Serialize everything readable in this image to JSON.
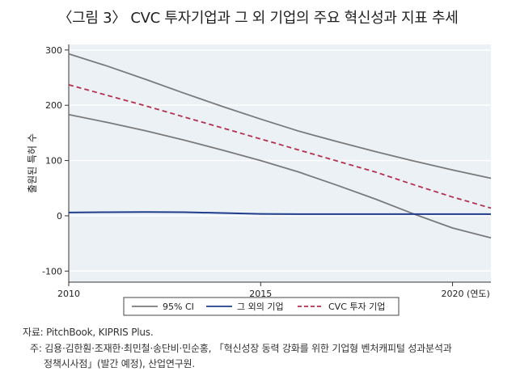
{
  "figure_title": "〈그림 3〉 CVC 투자기업과 그 외 기업의 주요 혁신성과 지표 추세",
  "source": {
    "line": "자료: PitchBook, KIPRIS Plus.",
    "note_line1": "주: 김용·김한훤·조재한·최민철·송단비·민순홍, 「혁신성장 동력 강화를 위한 기업형 벤처캐피털 성과분석과",
    "note_line2": "정책시사점」(발간 예정), 산업연구원."
  },
  "colors": {
    "plot_bg": "#ecf1f6",
    "grid": "#ffffff",
    "ci": "#7a7a7a",
    "other": "#1f3d8c",
    "cvc": "#b3304e"
  },
  "chart_data": {
    "type": "line",
    "title": "〈그림 3〉 CVC 투자기업과 그 외 기업의 주요 혁신성과 지표 추세",
    "ylabel": "출원된 특허 수",
    "xlabel": "",
    "xlim": [
      2010,
      2021
    ],
    "ylim": [
      -120,
      310
    ],
    "x_ticks": [
      {
        "value": 2010,
        "label": "2010"
      },
      {
        "value": 2015,
        "label": "2015"
      },
      {
        "value": 2020,
        "label": "2020 (연도)"
      }
    ],
    "y_ticks": [
      {
        "value": -100,
        "label": "-100"
      },
      {
        "value": 0,
        "label": "0"
      },
      {
        "value": 100,
        "label": "100"
      },
      {
        "value": 200,
        "label": "200"
      },
      {
        "value": 300,
        "label": "300"
      }
    ],
    "grid": true,
    "legend_position": "bottom",
    "series": [
      {
        "key": "ci_upper",
        "name": "95% CI",
        "style": "solid",
        "color": "#7a7a7a",
        "points": [
          [
            2010,
            293
          ],
          [
            2011,
            271
          ],
          [
            2012,
            247
          ],
          [
            2013,
            222
          ],
          [
            2014,
            198
          ],
          [
            2015,
            175
          ],
          [
            2016,
            153
          ],
          [
            2017,
            134
          ],
          [
            2018,
            116
          ],
          [
            2019,
            99
          ],
          [
            2020,
            83
          ],
          [
            2021,
            68
          ]
        ]
      },
      {
        "key": "ci_lower",
        "name": "95% CI",
        "style": "solid",
        "color": "#7a7a7a",
        "points": [
          [
            2010,
            183
          ],
          [
            2011,
            169
          ],
          [
            2012,
            154
          ],
          [
            2013,
            137
          ],
          [
            2014,
            119
          ],
          [
            2015,
            100
          ],
          [
            2016,
            79
          ],
          [
            2017,
            55
          ],
          [
            2018,
            30
          ],
          [
            2019,
            3
          ],
          [
            2020,
            -22
          ],
          [
            2021,
            -40
          ]
        ]
      },
      {
        "key": "other",
        "name": "그 외의 기업",
        "style": "solid",
        "color": "#1f3d8c",
        "points": [
          [
            2010,
            6
          ],
          [
            2011,
            6.5
          ],
          [
            2012,
            7
          ],
          [
            2013,
            6.5
          ],
          [
            2014,
            5
          ],
          [
            2015,
            3.5
          ],
          [
            2016,
            3
          ],
          [
            2017,
            3
          ],
          [
            2018,
            3
          ],
          [
            2019,
            3
          ],
          [
            2020,
            3
          ],
          [
            2021,
            3
          ]
        ]
      },
      {
        "key": "cvc",
        "name": "CVC 투자 기업",
        "style": "dashed",
        "color": "#b3304e",
        "points": [
          [
            2010,
            237
          ],
          [
            2011,
            218
          ],
          [
            2012,
            199
          ],
          [
            2013,
            179
          ],
          [
            2014,
            159
          ],
          [
            2015,
            139
          ],
          [
            2016,
            119
          ],
          [
            2017,
            99
          ],
          [
            2018,
            79
          ],
          [
            2019,
            56
          ],
          [
            2020,
            34
          ],
          [
            2021,
            14
          ]
        ]
      }
    ],
    "legend": [
      {
        "label": "95% CI",
        "style": "solid",
        "color": "#7a7a7a"
      },
      {
        "label": "그 외의 기업",
        "style": "solid",
        "color": "#1f3d8c"
      },
      {
        "label": "CVC 투자 기업",
        "style": "dashed",
        "color": "#b3304e"
      }
    ]
  }
}
